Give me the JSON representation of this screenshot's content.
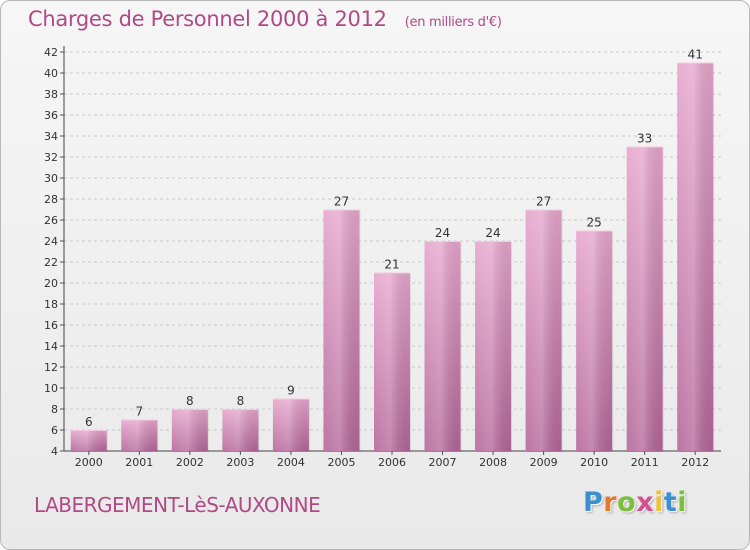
{
  "title": "Charges de Personnel 2000 à 2012",
  "subtitle": "(en milliers d'€)",
  "location": "LABERGEMENT-LèS-AUXONNE",
  "logo": {
    "letters": [
      "P",
      "r",
      "o",
      "x",
      "i",
      "t",
      "i"
    ],
    "colors": [
      "#3a8fd0",
      "#e57a2e",
      "#7bbf3a",
      "#d64f8f",
      "#f0c23a",
      "#3a8fd0",
      "#7bbf3a"
    ]
  },
  "colors": {
    "bar_top": "#e6a6cc",
    "bar_bottom": "#b4669a",
    "text": "#b04a86"
  },
  "chart_data": {
    "type": "bar",
    "title": "Charges de Personnel 2000 à 2012",
    "subtitle": "(en milliers d'€)",
    "categories": [
      "2000",
      "2001",
      "2002",
      "2003",
      "2004",
      "2005",
      "2006",
      "2007",
      "2008",
      "2009",
      "2010",
      "2011",
      "2012"
    ],
    "values": [
      6,
      7,
      8,
      8,
      9,
      27,
      21,
      24,
      24,
      27,
      25,
      33,
      41
    ],
    "ylim": [
      4,
      42
    ],
    "yticks": [
      4,
      6,
      8,
      10,
      12,
      14,
      16,
      18,
      20,
      22,
      24,
      26,
      28,
      30,
      32,
      34,
      36,
      38,
      40,
      42
    ],
    "grid": "horizontal dashed",
    "legend": "none"
  }
}
